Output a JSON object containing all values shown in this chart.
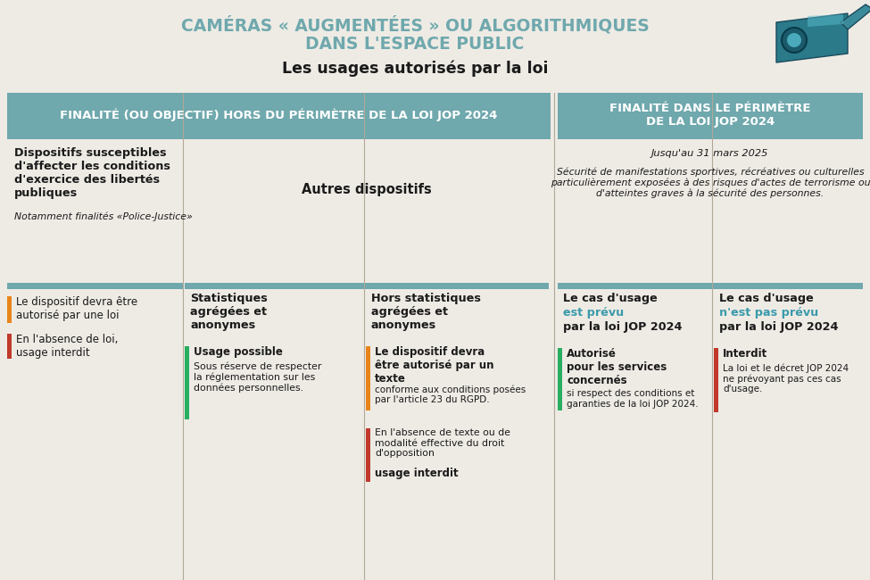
{
  "bg_color": "#eeebe5",
  "teal_header": "#6fa8ad",
  "teal_text": "#3a9aaa",
  "dark_text": "#1a1a1a",
  "orange_bar": "#e8851a",
  "red_bar": "#c0392b",
  "green_bar": "#27ae60",
  "title_line1": "CAMÉRAS « AUGMENTÉES » OU ALGORITHMIQUES",
  "title_line2": "DANS L'ESPACE PUBLIC",
  "subtitle": "Les usages autorisés par la loi",
  "header_left": "FINALITÉ (OU OBJECTIF) HORS DU PÉRIMÈTRE DE LA LOI JOP 2024",
  "header_right": "FINALITÉ DANS LE PÉRIMÈTRE\nDE LA LOI JOP 2024",
  "col1_head": "Dispositifs susceptibles\nd'affecter les conditions\nd'exercice des libertés\npubliques",
  "col1_sub": "Notamment finalités «Police-Justice»",
  "col2_head": "Autres dispositifs",
  "col3_date": "Jusqu'au 31 mars 2025",
  "col3_body": "Sécurité de manifestations sportives, récréatives ou culturelles\nparticulièrement exposées à des risques d'actes de terrorisme ou\nd'atteintes graves à la sécurité des personnes.",
  "col1_b1": "Le dispositif devra être\nautorisé par une loi",
  "col1_b2": "En l'absence de loi,\nusage interdit",
  "col2a_head": "Statistiques\nagrégées et\nanonymes",
  "col2a_b1_bold": "Usage possible",
  "col2a_b1_body": "Sous réserve de respecter\nla réglementation sur les\ndonnées personnelles.",
  "col2b_head": "Hors statistiques\nagrégées et\nanonymes",
  "col2b_b1_bold": "Le dispositif devra\nêtre autorisé par un\ntexte",
  "col2b_b1_body": "conforme aux conditions posées\npar l'article 23 du RGPD.",
  "col2b_b2_body": "En l'absence de texte ou de\nmodalité effective du droit\nd'opposition",
  "col2b_b2_bold": "usage interdit",
  "col3a_h1": "Le cas d'usage",
  "col3a_h2": "est prévu",
  "col3a_h3": "par la loi JOP 2024",
  "col3a_b1_bold": "Autorisé\npour les services\nconcernés",
  "col3a_b1_body": "si respect des conditions et\ngaranties de la loi JOP 2024.",
  "col3b_h1": "Le cas d'usage",
  "col3b_h2": "n'est pas prévu",
  "col3b_h3": "par la loi JOP 2024",
  "col3b_b1_bold": "Interdit",
  "col3b_b1_body": "La loi et le décret JOP 2024\nne prévoyant pas ces cas\nd'usage.",
  "divider_color": "#b0a898"
}
